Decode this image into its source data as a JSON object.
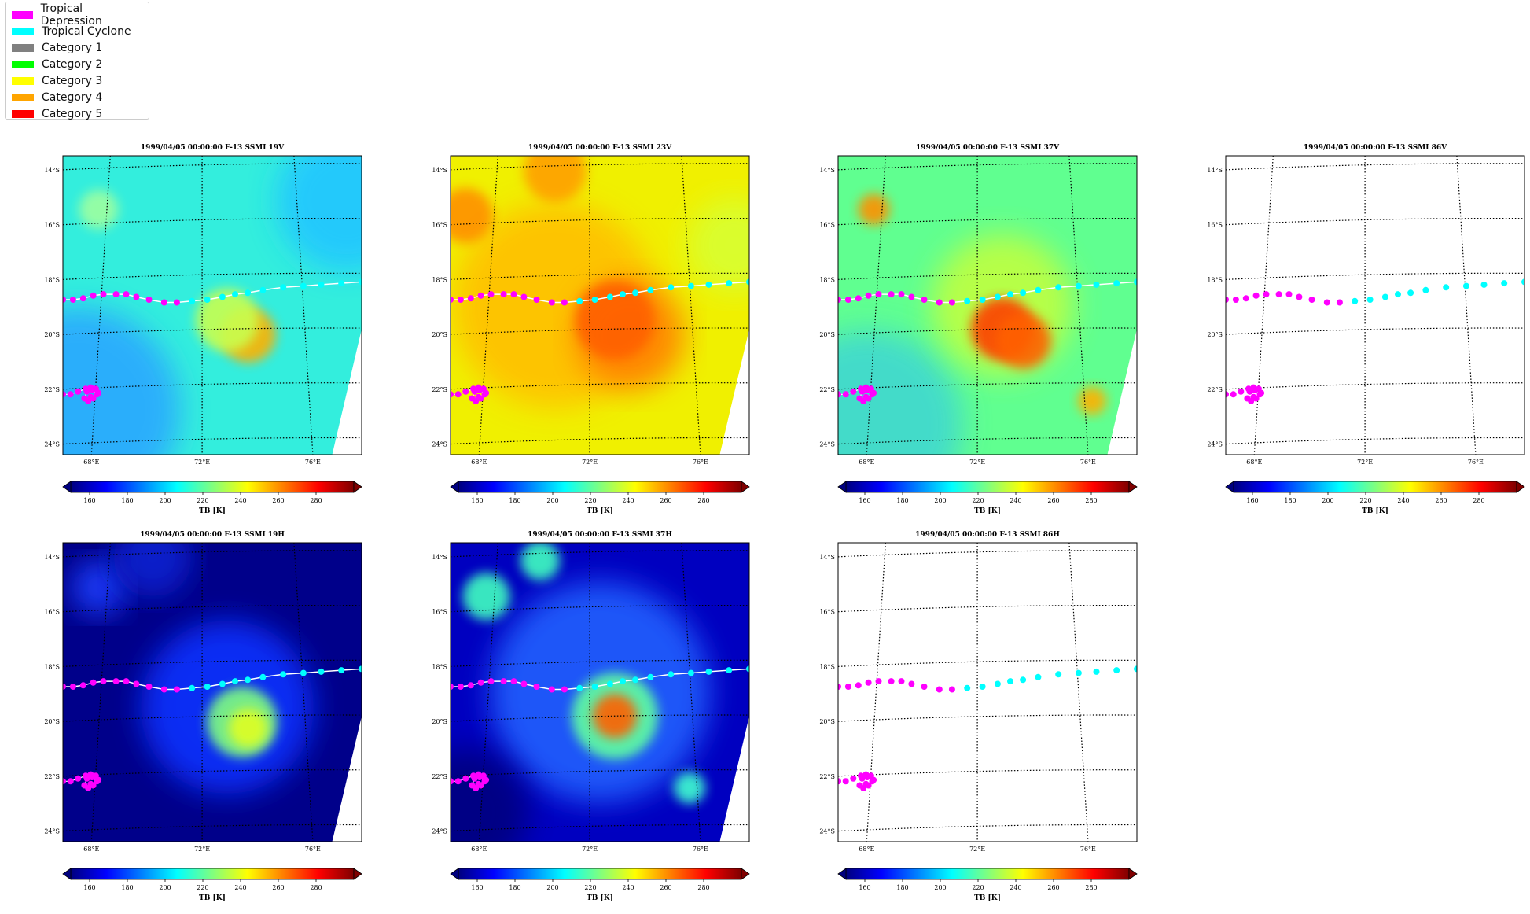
{
  "legend": [
    {
      "label": "Tropical Depression",
      "color": "#ff00ff"
    },
    {
      "label": "Tropical Cyclone",
      "color": "#00ffff"
    },
    {
      "label": "Category 1",
      "color": "#808080"
    },
    {
      "label": "Category 2",
      "color": "#00ff00"
    },
    {
      "label": "Category 3",
      "color": "#ffff00"
    },
    {
      "label": "Category 4",
      "color": "#ffa500"
    },
    {
      "label": "Category 5",
      "color": "#ff0000"
    }
  ],
  "map_extent": {
    "lon": [
      66.5,
      78.3
    ],
    "lat": [
      -24.5,
      -13.6
    ]
  },
  "lat_ticks": [
    -14,
    -16,
    -18,
    -20,
    -22,
    -24
  ],
  "lat_labels": [
    "14°S",
    "16°S",
    "18°S",
    "20°S",
    "22°S",
    "24°S"
  ],
  "lon_ticks": [
    68,
    72,
    76
  ],
  "lon_labels": [
    "68°E",
    "72°E",
    "76°E"
  ],
  "colorbar": {
    "ticks": [
      160,
      180,
      200,
      220,
      240,
      260,
      280
    ],
    "range": [
      150,
      300
    ],
    "label": "TB [K]",
    "colormap": [
      "#00007f",
      "#0000ff",
      "#007fff",
      "#00ffff",
      "#7fff7f",
      "#ffff00",
      "#ff7f00",
      "#ff0000",
      "#7f0000"
    ]
  },
  "track": {
    "main": [
      {
        "lon": 66.5,
        "lat": -18.85,
        "stage": "Tropical Depression"
      },
      {
        "lon": 66.9,
        "lat": -18.85,
        "stage": "Tropical Depression"
      },
      {
        "lon": 67.3,
        "lat": -18.8,
        "stage": "Tropical Depression"
      },
      {
        "lon": 67.7,
        "lat": -18.7,
        "stage": "Tropical Depression"
      },
      {
        "lon": 68.1,
        "lat": -18.65,
        "stage": "Tropical Depression"
      },
      {
        "lon": 68.6,
        "lat": -18.65,
        "stage": "Tropical Depression"
      },
      {
        "lon": 69.0,
        "lat": -18.65,
        "stage": "Tropical Depression"
      },
      {
        "lon": 69.4,
        "lat": -18.75,
        "stage": "Tropical Depression"
      },
      {
        "lon": 69.9,
        "lat": -18.85,
        "stage": "Tropical Depression"
      },
      {
        "lon": 70.5,
        "lat": -18.95,
        "stage": "Tropical Depression"
      },
      {
        "lon": 71.0,
        "lat": -18.95,
        "stage": "Tropical Depression"
      },
      {
        "lon": 71.6,
        "lat": -18.9,
        "stage": "Tropical Cyclone"
      },
      {
        "lon": 72.2,
        "lat": -18.85,
        "stage": "Tropical Cyclone"
      },
      {
        "lon": 72.8,
        "lat": -18.75,
        "stage": "Tropical Cyclone"
      },
      {
        "lon": 73.3,
        "lat": -18.65,
        "stage": "Tropical Cyclone"
      },
      {
        "lon": 73.8,
        "lat": -18.6,
        "stage": "Tropical Cyclone"
      },
      {
        "lon": 74.4,
        "lat": -18.5,
        "stage": "Tropical Cyclone"
      },
      {
        "lon": 75.2,
        "lat": -18.4,
        "stage": "Tropical Cyclone"
      },
      {
        "lon": 76.0,
        "lat": -18.35,
        "stage": "Tropical Cyclone"
      },
      {
        "lon": 76.7,
        "lat": -18.3,
        "stage": "Tropical Cyclone"
      },
      {
        "lon": 77.5,
        "lat": -18.25,
        "stage": "Tropical Cyclone"
      },
      {
        "lon": 78.3,
        "lat": -18.2,
        "stage": "Tropical Cyclone"
      }
    ],
    "loop": [
      {
        "lon": 66.5,
        "lat": -22.3
      },
      {
        "lon": 66.8,
        "lat": -22.3
      },
      {
        "lon": 67.1,
        "lat": -22.2
      },
      {
        "lon": 67.4,
        "lat": -22.1
      },
      {
        "lon": 67.6,
        "lat": -22.05
      },
      {
        "lon": 67.8,
        "lat": -22.1
      },
      {
        "lon": 67.9,
        "lat": -22.25
      },
      {
        "lon": 67.7,
        "lat": -22.45
      },
      {
        "lon": 67.5,
        "lat": -22.55
      },
      {
        "lon": 67.35,
        "lat": -22.45
      },
      {
        "lon": 67.45,
        "lat": -22.2
      },
      {
        "lon": 67.65,
        "lat": -22.15
      },
      {
        "lon": 67.85,
        "lat": -22.3
      },
      {
        "lon": 67.6,
        "lat": -22.4
      }
    ]
  },
  "panels": [
    {
      "title": "1999/04/05 00:00:00  F-13 SSMI 19V",
      "has_data": true
    },
    {
      "title": "1999/04/05 00:00:00  F-13 SSMI 23V",
      "has_data": true
    },
    {
      "title": "1999/04/05 00:00:00  F-13 SSMI 37V",
      "has_data": true
    },
    {
      "title": "1999/04/05 00:00:00  F-13 SSMI 86V",
      "has_data": false
    },
    {
      "title": "1999/04/05 00:00:00  F-13 SSMI 19H",
      "has_data": true
    },
    {
      "title": "1999/04/05 00:00:00  F-13 SSMI 37H",
      "has_data": true
    },
    {
      "title": "1999/04/05 00:00:00  F-13 SSMI 86H",
      "has_data": false
    }
  ]
}
